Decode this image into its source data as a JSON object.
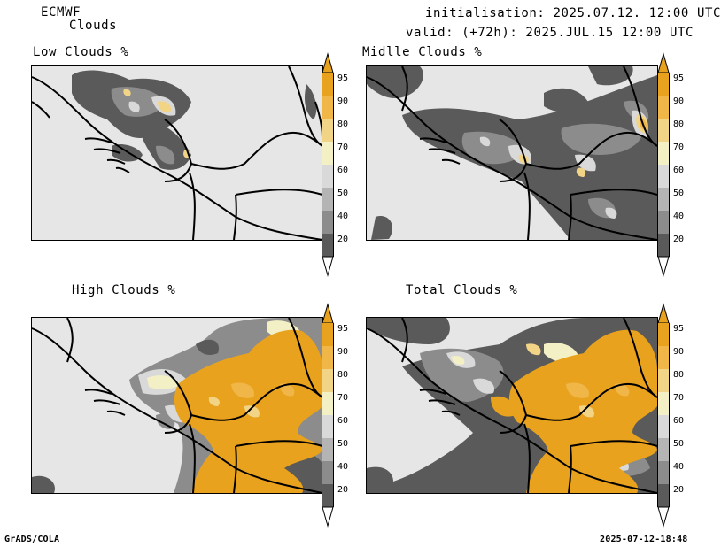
{
  "header": {
    "model": "ECMWF",
    "product": "Clouds",
    "init": "initialisation: 2025.07.12. 12:00 UTC",
    "valid": "valid: (+72h): 2025.JUL.15 12:00 UTC"
  },
  "panels": [
    {
      "title": "Low Clouds %"
    },
    {
      "title": "Midlle Clouds %"
    },
    {
      "title": "High Clouds %"
    },
    {
      "title": "Total Clouds %"
    }
  ],
  "colorbar": {
    "levels": [
      "95",
      "90",
      "80",
      "70",
      "60",
      "50",
      "40",
      "20"
    ],
    "colors": {
      "c95": "#e8a21d",
      "c90": "#f0b648",
      "c80": "#f2d486",
      "c70": "#f4f0c6",
      "c60": "#d9d9d9",
      "c50": "#b4b4b4",
      "c40": "#8c8c8c",
      "c20": "#5a5a5a",
      "below": "#ffffff"
    }
  },
  "footer": {
    "left": "GrADS/COLA",
    "right": "2025-07-12-18:48"
  }
}
